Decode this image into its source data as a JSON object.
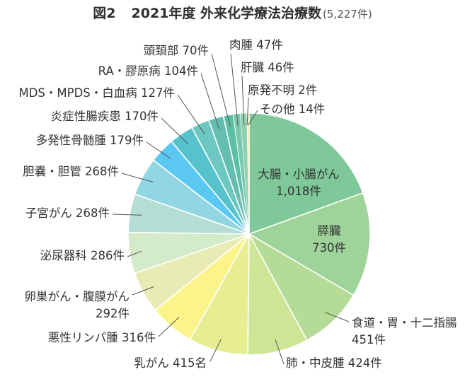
{
  "header": {
    "figure_number": "図2",
    "title": "2021年度 外来化学療法治療数",
    "subtitle": "(5,227件)"
  },
  "chart_data": {
    "type": "pie",
    "title": "2021年度 外来化学療法治療数",
    "total_label": "(5,227件)",
    "slices": [
      {
        "name": "大腸・小腸がん",
        "value": 1018,
        "value_label": "1,018件",
        "color": "#7ec89a"
      },
      {
        "name": "膵臓",
        "value": 730,
        "value_label": "730件",
        "color": "#9ed39a"
      },
      {
        "name": "食道・胃・十二指腸",
        "value": 451,
        "value_label": "451件",
        "color": "#b5dc96"
      },
      {
        "name": "肺・中皮腫",
        "value": 424,
        "value_label": "424件",
        "color": "#cfe596"
      },
      {
        "name": "乳がん",
        "value": 415,
        "value_label": "415名",
        "color": "#e7ee92"
      },
      {
        "name": "悪性リンパ腫",
        "value": 316,
        "value_label": "316件",
        "color": "#fbf48a"
      },
      {
        "name": "卵巣がん・腹膜がん",
        "value": 292,
        "value_label": "292件",
        "color": "#e8ecb4"
      },
      {
        "name": "泌尿器科",
        "value": 286,
        "value_label": "286件",
        "color": "#d3ebc8"
      },
      {
        "name": "子宮がん",
        "value": 268,
        "value_label": "268件",
        "color": "#b4ddd4"
      },
      {
        "name": "胆嚢・胆管",
        "value": 268,
        "value_label": "268件",
        "color": "#91d6e2"
      },
      {
        "name": "多発性骨髄腫",
        "value": 179,
        "value_label": "179件",
        "color": "#5bc8f2"
      },
      {
        "name": "炎症性腸疾患",
        "value": 170,
        "value_label": "170件",
        "color": "#55c2cc"
      },
      {
        "name": "MDS・MPDS・白血病",
        "value": 127,
        "value_label": "127件",
        "color": "#6cc8c0"
      },
      {
        "name": "RA・膠原病",
        "value": 104,
        "value_label": "104件",
        "color": "#64beb0"
      },
      {
        "name": "頭頚部",
        "value": 70,
        "value_label": "70件",
        "color": "#5cc0a4"
      },
      {
        "name": "肉腫",
        "value": 47,
        "value_label": "47件",
        "color": "#79c8ac"
      },
      {
        "name": "肝臓",
        "value": 46,
        "value_label": "46件",
        "color": "#8fd0b2"
      },
      {
        "name": "原発不明",
        "value": 2,
        "value_label": "2件",
        "color": "#a6d8bc"
      },
      {
        "name": "その他",
        "value": 14,
        "value_label": "14件",
        "color": "#f3e9a6"
      }
    ]
  }
}
